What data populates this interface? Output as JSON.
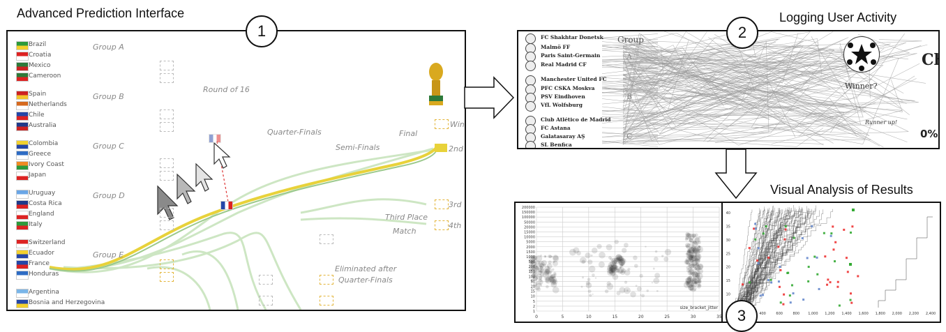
{
  "headings": {
    "p1": "Advanced Prediction Interface",
    "p2": "Logging User Activity",
    "p3": "Visual Analysis of Results"
  },
  "badges": [
    "1",
    "2",
    "3"
  ],
  "panel1": {
    "groups": [
      {
        "label": "Group A",
        "teams": [
          "Brazil",
          "Croatia",
          "Mexico",
          "Cameroon"
        ]
      },
      {
        "label": "Group B",
        "teams": [
          "Spain",
          "Netherlands",
          "Chile",
          "Australia"
        ]
      },
      {
        "label": "Group C",
        "teams": [
          "Colombia",
          "Greece",
          "Ivory Coast",
          "Japan"
        ]
      },
      {
        "label": "Group D",
        "teams": [
          "Uruguay",
          "Costa Rica",
          "England",
          "Italy"
        ]
      },
      {
        "label": "Group E",
        "teams": [
          "Switzerland",
          "Ecuador",
          "France",
          "Honduras"
        ]
      },
      {
        "label": "",
        "teams": [
          "Argentina",
          "Bosnia and Herzegovina"
        ]
      }
    ],
    "stages": {
      "r16": "Round of 16",
      "qf": "Quarter-Finals",
      "sf": "Semi-Finals",
      "final": "Final",
      "third_1": "Third Place",
      "third_2": "Match",
      "elim_1": "Eliminated after",
      "elim_2": "Quarter-Finals"
    },
    "places": [
      "Win",
      "2nd",
      "3rd",
      "4th"
    ]
  },
  "panel2": {
    "group_header": "Group",
    "group_letters": [
      "A",
      "B",
      "C"
    ],
    "teams": [
      "FC Shakhtar Donetsk",
      "Malmö FF",
      "Paris Saint-Germain",
      "Real Madrid CF",
      "Manchester United FC",
      "PFC CSKA Moskva",
      "PSV Eindhoven",
      "VfL Wolfsburg",
      "Club Atlético de Madrid",
      "FC Astana",
      "Galatasaray AŞ",
      "SL Benfica"
    ],
    "winner": "Winner?",
    "runner_up": "Runner up!",
    "big_text_1": "Ch",
    "big_text_2": "0%"
  },
  "panel3": {
    "left_y_ticks": [
      "200000",
      "150000",
      "100000",
      "50000",
      "20000",
      "15000",
      "10000",
      "5000",
      "2000",
      "1500",
      "1000",
      "500",
      "200",
      "150",
      "100",
      "50",
      "20",
      "15",
      "10",
      "5",
      "2",
      "1"
    ],
    "left_x_ticks": [
      "0",
      "5",
      "10",
      "15",
      "20",
      "25",
      "30",
      "35"
    ],
    "left_xlabel": "size_bracket_jitter",
    "right_y_ticks": [
      "40",
      "35",
      "30",
      "25",
      "20",
      "15",
      "10",
      "5"
    ],
    "right_x_ticks": [
      "200",
      "400",
      "600",
      "800",
      "1,000",
      "1,200",
      "1,400",
      "1,600",
      "1,800",
      "2,000",
      "2,200",
      "2,400"
    ]
  },
  "colors": {
    "accent_yellow": "#e8d23a",
    "flow_green": "#a8d49a",
    "slot_yellow": "#e3b53a",
    "france_blue": "#2446a8"
  }
}
